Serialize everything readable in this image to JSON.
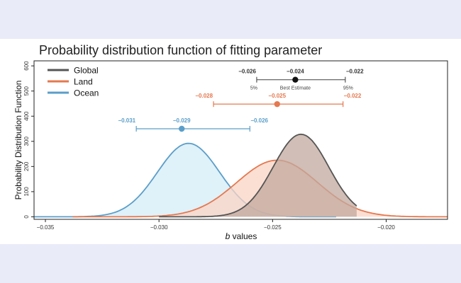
{
  "chart_data": {
    "type": "area",
    "title": "Probability distribution function of fitting parameter",
    "xlabel_italic": "b",
    "xlabel_rest": " values",
    "ylabel": "Probability Distribution Function",
    "xlim": [
      -0.0355,
      -0.0173
    ],
    "ylim": [
      -10,
      620
    ],
    "x_ticks": [
      -0.035,
      -0.03,
      -0.025,
      -0.02
    ],
    "x_tick_labels": [
      "−0.035",
      "−0.030",
      "−0.025",
      "−0.020"
    ],
    "y_ticks": [
      0,
      100,
      200,
      300,
      400,
      500,
      600
    ],
    "y_tick_labels": [
      "0",
      "100",
      "200",
      "300",
      "400",
      "500",
      "600"
    ],
    "legend_position": "top-left",
    "series": [
      {
        "name": "Ocean",
        "color": "#5b9ec9",
        "fill": "#d4ecf7",
        "mean": -0.0287,
        "sd": 0.00137,
        "peak": 292,
        "x_range": [
          -0.0355,
          -0.0222
        ],
        "ci": {
          "low": -0.031,
          "best": -0.029,
          "high": -0.026,
          "marker_y": 350,
          "labels": [
            "−0.031",
            "−0.029",
            "−0.026"
          ]
        }
      },
      {
        "name": "Land",
        "color": "#e5784f",
        "fill": "#fbd4c4",
        "mean": -0.0248,
        "sd": 0.00178,
        "peak": 225,
        "x_range": [
          -0.0338,
          -0.0173
        ],
        "ci": {
          "low": -0.0276,
          "best": -0.0248,
          "high": -0.0219,
          "marker_y": 448,
          "labels": [
            "−0.028",
            "−0.025",
            "−0.022"
          ]
        }
      },
      {
        "name": "Global",
        "color": "#555555",
        "fill": "#c1a89e",
        "mean": -0.02375,
        "sd": 0.00122,
        "peak": 328,
        "x_range": [
          -0.03,
          -0.0213
        ],
        "ci": {
          "low": -0.0257,
          "best": -0.024,
          "high": -0.0218,
          "marker_y": 545,
          "labels": [
            "−0.026",
            "−0.024",
            "−0.022"
          ],
          "sub_labels": [
            "5%",
            "Best Estimate",
            "95%"
          ]
        }
      }
    ],
    "legend_order": [
      "Global",
      "Land",
      "Ocean"
    ]
  }
}
